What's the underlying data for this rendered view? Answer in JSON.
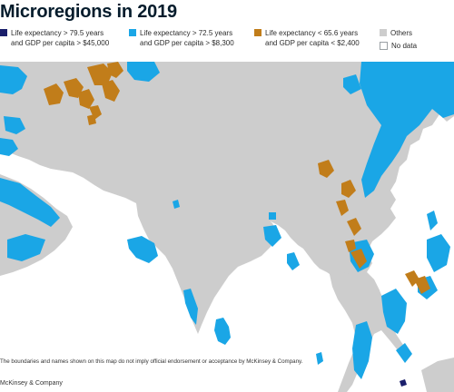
{
  "title": "Microregions in 2019",
  "legend": [
    {
      "line1": "Life expectancy > 79.5 years",
      "line2": "and GDP per capita > $45,000",
      "color": "#1a1f6b"
    },
    {
      "line1": "Life expectancy > 72.5 years",
      "line2": "and GDP per capita > $8,300",
      "color": "#1aa6e6"
    },
    {
      "line1": "Life expectancy < 65.6 years",
      "line2": "and GDP per capita < $2,400",
      "color": "#c17d1a"
    },
    {
      "line1": "Others",
      "color": "#cdcdcd"
    },
    {
      "line1": "No data",
      "color": "#ffffff"
    }
  ],
  "disclaimer": "The boundaries and names shown on this map do not imply official endorsement or acceptance by McKinsey & Company.",
  "source": "McKinsey & Company",
  "colors": {
    "sea": "#1aa6e6",
    "land": "#cdcdcd",
    "low": "#c17d1a",
    "high": "#1a1f6b"
  }
}
